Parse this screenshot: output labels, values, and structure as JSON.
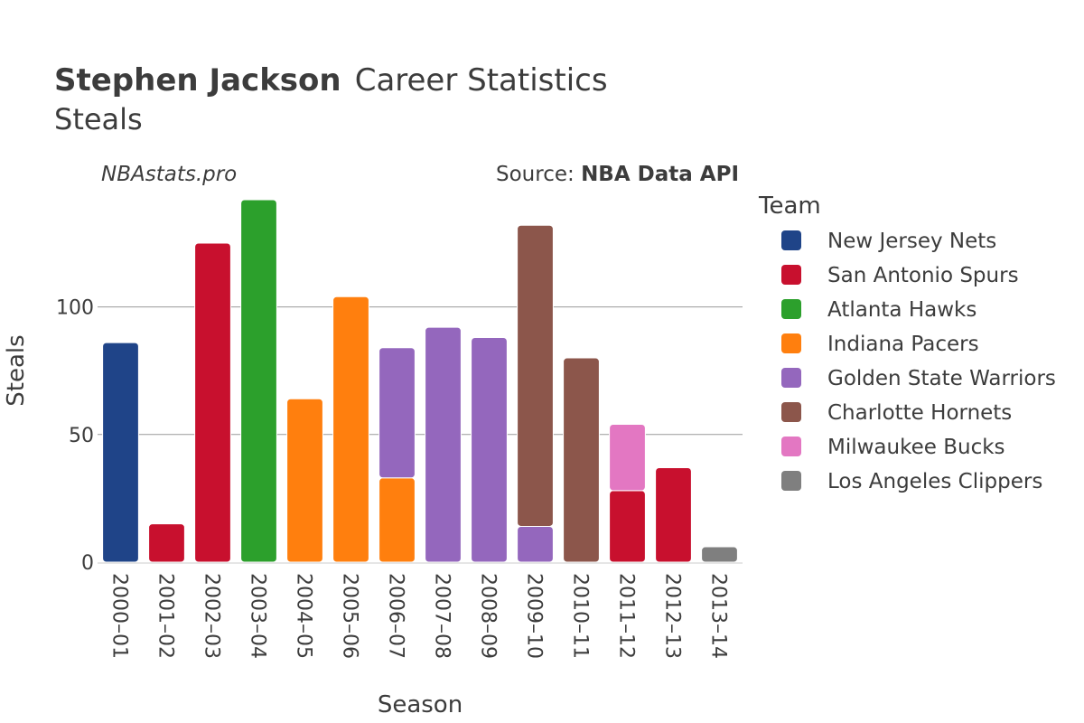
{
  "header": {
    "player": "Stephen Jackson",
    "title_rest": "Career Statistics",
    "subtitle": "Steals",
    "brand": "NBAstats.pro",
    "source_prefix": "Source: ",
    "source_name": "NBA Data API"
  },
  "chart_data": {
    "type": "bar",
    "stacked": true,
    "xlabel": "Season",
    "ylabel": "Steals",
    "ylim": [
      0,
      148
    ],
    "yticks": [
      0,
      50,
      100
    ],
    "grid": true,
    "legend_title": "Team",
    "legend_position": "right",
    "categories": [
      "2000–01",
      "2001–02",
      "2002–03",
      "2003–04",
      "2004–05",
      "2005–06",
      "2006–07",
      "2007–08",
      "2008–09",
      "2009–10",
      "2010–11",
      "2011–12",
      "2012–13",
      "2013–14"
    ],
    "series": [
      {
        "name": "New Jersey Nets",
        "color": "#1f4488",
        "values": [
          86,
          0,
          0,
          0,
          0,
          0,
          0,
          0,
          0,
          0,
          0,
          0,
          0,
          0
        ]
      },
      {
        "name": "San Antonio Spurs",
        "color": "#c8102e",
        "values": [
          0,
          15,
          125,
          0,
          0,
          0,
          0,
          0,
          0,
          0,
          0,
          28,
          37,
          0
        ]
      },
      {
        "name": "Atlanta Hawks",
        "color": "#2ca02c",
        "values": [
          0,
          0,
          0,
          142,
          0,
          0,
          0,
          0,
          0,
          0,
          0,
          0,
          0,
          0
        ]
      },
      {
        "name": "Indiana Pacers",
        "color": "#ff7f0e",
        "values": [
          0,
          0,
          0,
          0,
          64,
          104,
          33,
          0,
          0,
          0,
          0,
          0,
          0,
          0
        ]
      },
      {
        "name": "Golden State Warriors",
        "color": "#9467bd",
        "values": [
          0,
          0,
          0,
          0,
          0,
          0,
          51,
          92,
          88,
          14,
          0,
          0,
          0,
          0
        ]
      },
      {
        "name": "Charlotte Hornets",
        "color": "#8c564b",
        "values": [
          0,
          0,
          0,
          0,
          0,
          0,
          0,
          0,
          0,
          118,
          80,
          0,
          0,
          0
        ]
      },
      {
        "name": "Milwaukee Bucks",
        "color": "#e377c2",
        "values": [
          0,
          0,
          0,
          0,
          0,
          0,
          0,
          0,
          0,
          0,
          0,
          26,
          0,
          0
        ]
      },
      {
        "name": "Los Angeles Clippers",
        "color": "#7f7f7f",
        "values": [
          0,
          0,
          0,
          0,
          0,
          0,
          0,
          0,
          0,
          0,
          0,
          0,
          0,
          6
        ]
      }
    ]
  }
}
